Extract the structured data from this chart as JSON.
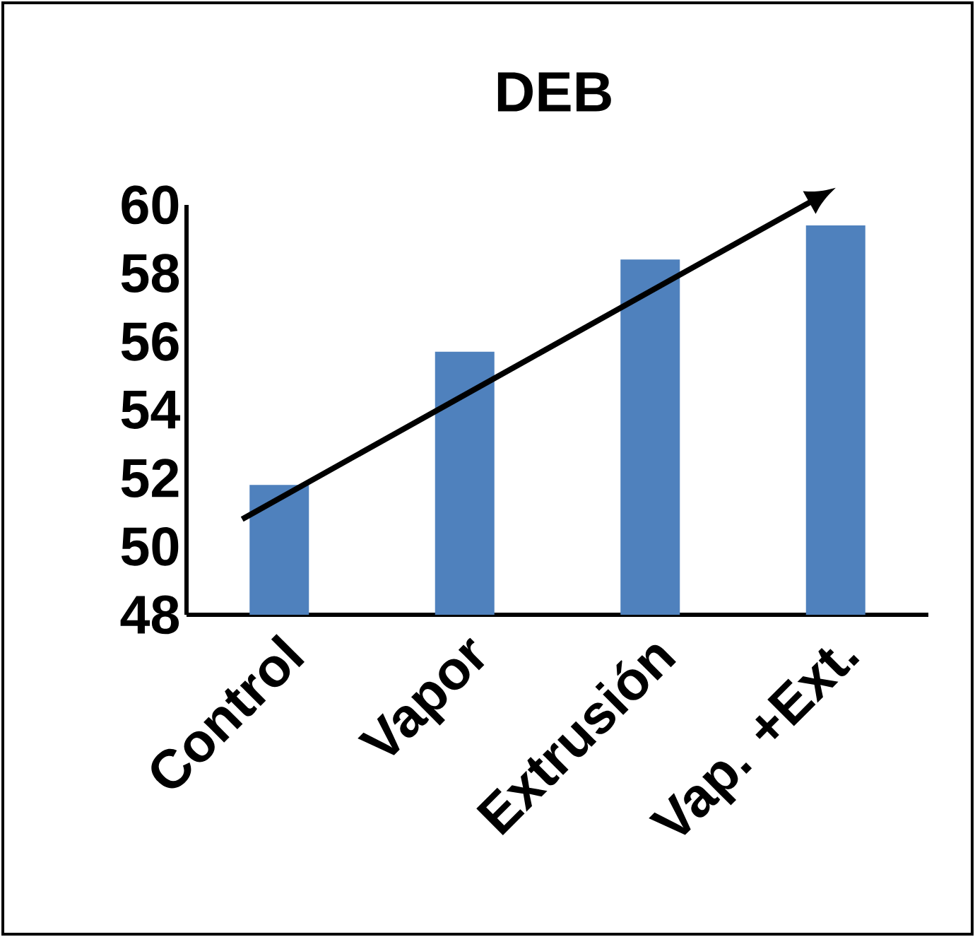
{
  "chart_data": {
    "type": "bar",
    "title": "DEB",
    "categories": [
      "Control",
      "Vapor",
      "Extrusión",
      "Vap. +Ext."
    ],
    "values": [
      51.8,
      55.7,
      58.4,
      59.4
    ],
    "color": "#4f81bd",
    "ylim": [
      48,
      60
    ],
    "yticks": [
      48,
      50,
      52,
      54,
      56,
      58,
      60
    ],
    "grid": false
  }
}
